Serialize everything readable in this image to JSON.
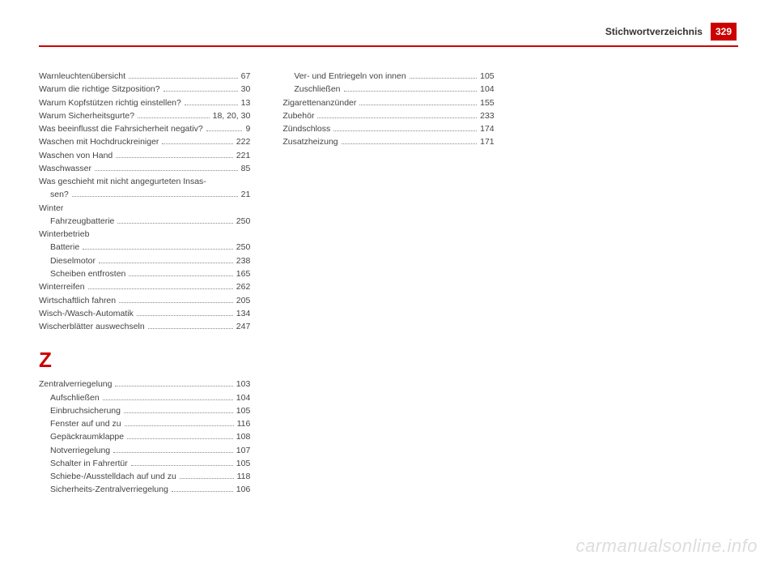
{
  "header": {
    "title": "Stichwortverzeichnis",
    "page_number": "329"
  },
  "columns": {
    "col1": {
      "entries_top": [
        {
          "label": "Warnleuchtenübersicht",
          "page": "67",
          "sub": false
        },
        {
          "label": "Warum die richtige Sitzposition?",
          "page": "30",
          "sub": false
        },
        {
          "label": "Warum Kopfstützen richtig einstellen?",
          "page": "13",
          "sub": false
        },
        {
          "label": "Warum Sicherheitsgurte?",
          "page": "18, 20, 30",
          "sub": false
        },
        {
          "label": "Was beeinflusst die Fahrsicherheit negativ?",
          "page": "9",
          "sub": false
        },
        {
          "label": "Waschen mit Hochdruckreiniger",
          "page": "222",
          "sub": false
        },
        {
          "label": "Waschen von Hand",
          "page": "221",
          "sub": false
        },
        {
          "label": "Waschwasser",
          "page": "85",
          "sub": false
        }
      ],
      "multiline": {
        "line1": "Was geschieht mit nicht angegurteten Insas-",
        "line2_label": "sen?",
        "line2_page": "21"
      },
      "group_winter": {
        "head": "Winter",
        "items": [
          {
            "label": "Fahrzeugbatterie",
            "page": "250",
            "sub": true
          }
        ]
      },
      "group_winterbetrieb": {
        "head": "Winterbetrieb",
        "items": [
          {
            "label": "Batterie",
            "page": "250",
            "sub": true
          },
          {
            "label": "Dieselmotor",
            "page": "238",
            "sub": true
          },
          {
            "label": "Scheiben entfrosten",
            "page": "165",
            "sub": true
          }
        ]
      },
      "entries_mid": [
        {
          "label": "Winterreifen",
          "page": "262",
          "sub": false
        },
        {
          "label": "Wirtschaftlich fahren",
          "page": "205",
          "sub": false
        },
        {
          "label": "Wisch-/Wasch-Automatik",
          "page": "134",
          "sub": false
        },
        {
          "label": "Wischerblätter auswechseln",
          "page": "247",
          "sub": false
        }
      ],
      "section_z": {
        "letter": "Z",
        "main": {
          "label": "Zentralverriegelung",
          "page": "103",
          "sub": false
        },
        "items": [
          {
            "label": "Aufschließen",
            "page": "104",
            "sub": true
          },
          {
            "label": "Einbruchsicherung",
            "page": "105",
            "sub": true
          },
          {
            "label": "Fenster auf und zu",
            "page": "116",
            "sub": true
          },
          {
            "label": "Gepäckraumklappe",
            "page": "108",
            "sub": true
          },
          {
            "label": "Notverriegelung",
            "page": "107",
            "sub": true
          },
          {
            "label": "Schalter in Fahrertür",
            "page": "105",
            "sub": true
          },
          {
            "label": "Schiebe-/Ausstelldach auf und zu",
            "page": "118",
            "sub": true
          },
          {
            "label": "Sicherheits-Zentralverriegelung",
            "page": "106",
            "sub": true
          }
        ]
      }
    },
    "col2": {
      "entries": [
        {
          "label": "Ver- und Entriegeln von innen",
          "page": "105",
          "sub": true
        },
        {
          "label": "Zuschließen",
          "page": "104",
          "sub": true
        },
        {
          "label": "Zigarettenanzünder",
          "page": "155",
          "sub": false
        },
        {
          "label": "Zubehör",
          "page": "233",
          "sub": false
        },
        {
          "label": "Zündschloss",
          "page": "174",
          "sub": false
        },
        {
          "label": "Zusatzheizung",
          "page": "171",
          "sub": false
        }
      ]
    }
  },
  "watermark": "carmanualsonline.info",
  "colors": {
    "accent": "#cc0000",
    "text": "#444444",
    "watermark": "#dddddd"
  }
}
